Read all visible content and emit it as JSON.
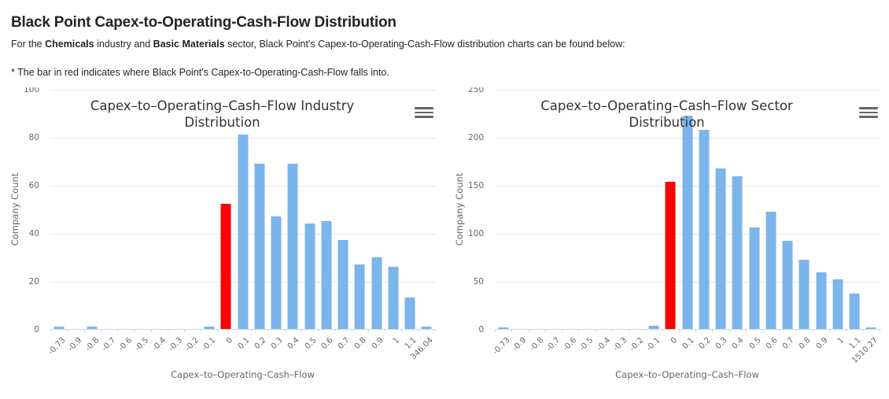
{
  "page": {
    "title": "Black Point Capex-to-Operating-Cash-Flow Distribution",
    "intro": {
      "prefix": "For the ",
      "industry": "Chemicals",
      "mid": " industry and ",
      "sector": "Basic Materials",
      "suffix": " sector, Black Point's Capex-to-Operating-Cash-Flow distribution charts can be found below:"
    },
    "note": "* The bar in red indicates where Black Point's Capex-to-Operating-Cash-Flow falls into."
  },
  "colors": {
    "bar": "#7cb5ec",
    "highlight": "#ff0000",
    "grid": "#e6e6e6",
    "axis_line": "#ccd6eb",
    "axis_label": "#666666",
    "chart_title": "#333333"
  },
  "chart_data": [
    {
      "type": "bar",
      "title": "Capex–to–Operating–Cash–Flow Industry Distribution",
      "xlabel": "Capex–to–Operating–Cash–Flow",
      "ylabel": "Company Count",
      "categories": [
        "-0.73",
        "-0.9",
        "-0.8",
        "-0.7",
        "-0.6",
        "-0.5",
        "-0.4",
        "-0.3",
        "-0.2",
        "-0.1",
        "0",
        "0.1",
        "0.2",
        "0.3",
        "0.4",
        "0.5",
        "0.6",
        "0.7",
        "0.8",
        "0.9",
        "1",
        "1.1",
        "346.04"
      ],
      "values": [
        1,
        0,
        1,
        0,
        0,
        0,
        0,
        0,
        0,
        1,
        52,
        81,
        69,
        47,
        69,
        44,
        45,
        37,
        27,
        30,
        26,
        13,
        1
      ],
      "highlight_index": 10,
      "highlight_category": "0",
      "ylim": [
        0,
        100
      ],
      "yticks": [
        0,
        20,
        40,
        60,
        80,
        100
      ],
      "grid": "on",
      "menu_icon": "hamburger-icon"
    },
    {
      "type": "bar",
      "title": "Capex–to–Operating–Cash–Flow Sector Distribution",
      "xlabel": "Capex–to–Operating–Cash–Flow",
      "ylabel": "Company Count",
      "categories": [
        "-0.73",
        "-0.9",
        "-0.8",
        "-0.7",
        "-0.6",
        "-0.5",
        "-0.4",
        "-0.3",
        "-0.2",
        "-0.1",
        "0",
        "0.1",
        "0.2",
        "0.3",
        "0.4",
        "0.5",
        "0.6",
        "0.7",
        "0.8",
        "0.9",
        "1",
        "1.1",
        "1510.27"
      ],
      "values": [
        1,
        0,
        0,
        0,
        0,
        0,
        0,
        0,
        0,
        3,
        153,
        222,
        207,
        167,
        159,
        106,
        122,
        92,
        72,
        59,
        52,
        37,
        1
      ],
      "highlight_index": 10,
      "highlight_category": "0",
      "ylim": [
        0,
        250
      ],
      "yticks": [
        0,
        50,
        100,
        150,
        200,
        250
      ],
      "grid": "on",
      "menu_icon": "hamburger-icon"
    }
  ]
}
